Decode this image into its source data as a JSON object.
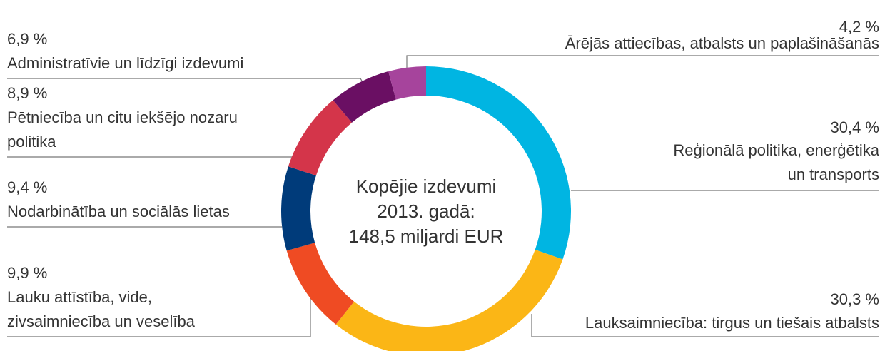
{
  "chart_data": {
    "type": "donut",
    "center_text": [
      "Kopējie izdevumi",
      "2013. gadā:",
      "148,5 miljardi EUR"
    ],
    "categories": [
      [
        "Reģionālā politika, enerģētika",
        "un transports"
      ],
      [
        "Lauksaimniecība: tirgus un tiešais atbalsts"
      ],
      [
        "Lauku attīstība, vide,",
        "zivsaimniecība un veselība"
      ],
      [
        "Nodarbinātība un sociālās lietas"
      ],
      [
        "Pētniecība un citu iekšējo nozaru",
        "politika"
      ],
      [
        "Administratīvie un līdzīgi izdevumi"
      ],
      [
        "Ārējās attiecības, atbalsts un paplašināšanās"
      ]
    ],
    "values": [
      30.4,
      30.3,
      9.9,
      9.4,
      8.9,
      6.9,
      4.2
    ],
    "value_labels": [
      "30,4 %",
      "30,3 %",
      "9,9 %",
      "9,4 %",
      "8,9 %",
      "6,9 %",
      "4,2 %"
    ],
    "colors": [
      "#00b5e2",
      "#fbb616",
      "#ef4b23",
      "#003b7a",
      "#d4354a",
      "#6a0f63",
      "#a6449c"
    ]
  }
}
